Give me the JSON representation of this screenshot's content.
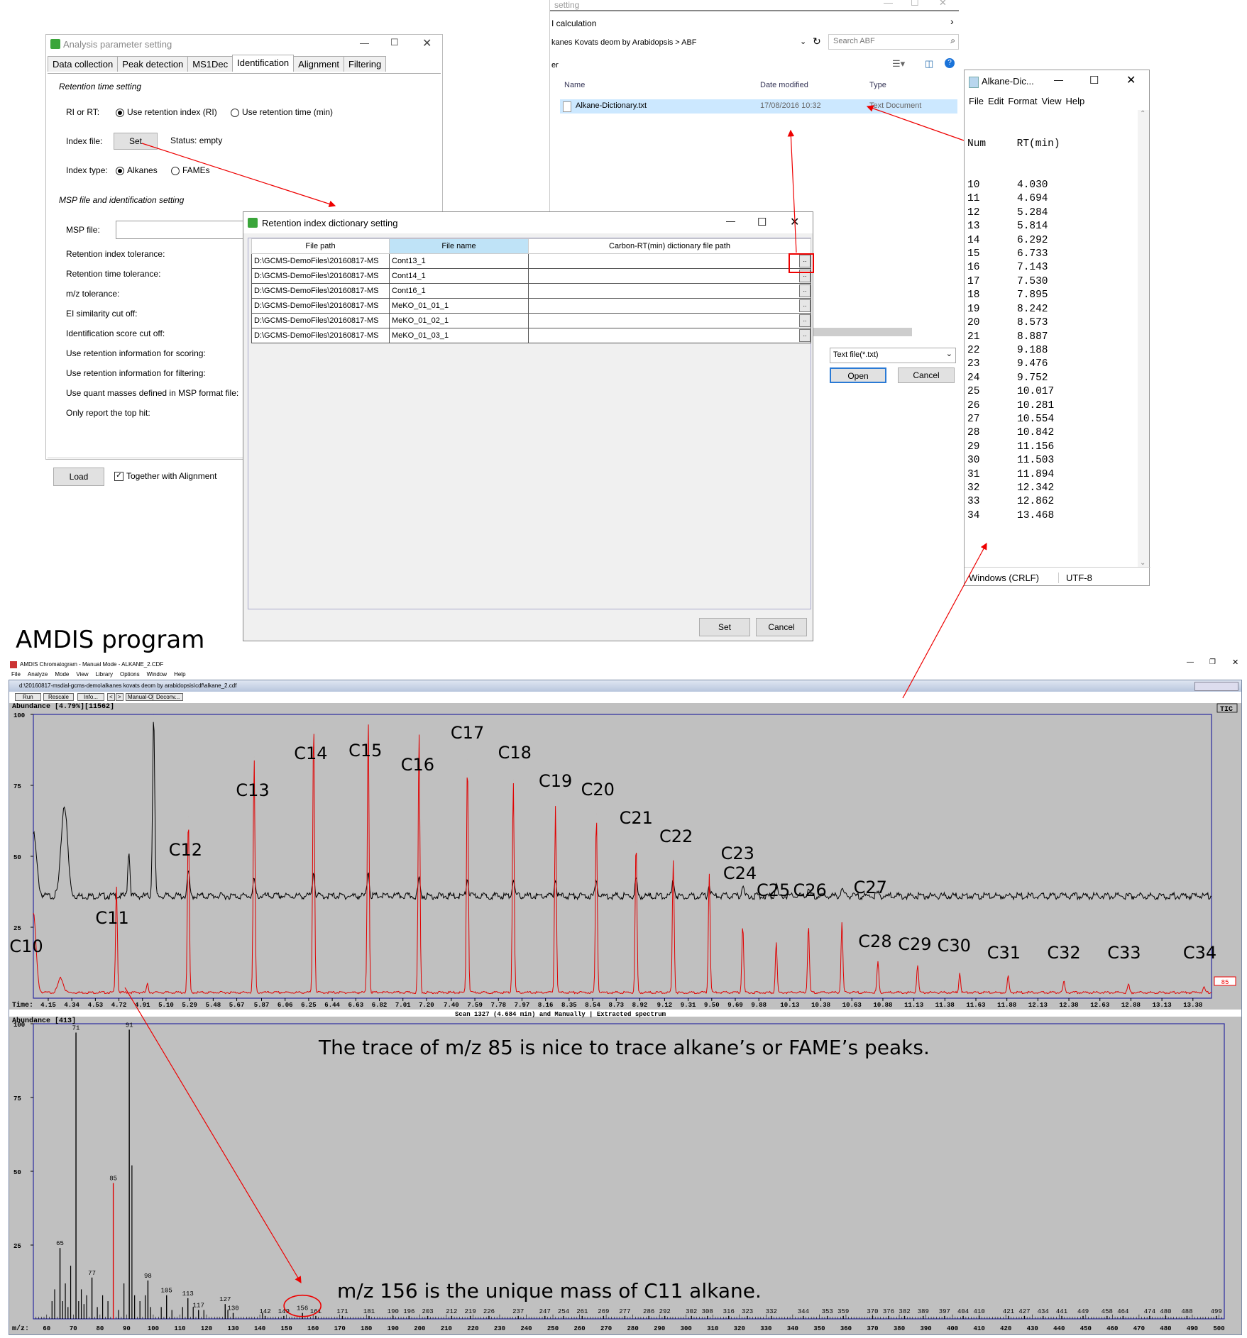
{
  "analysis_window": {
    "title": "Analysis parameter setting",
    "tabs": [
      "Data collection",
      "Peak detection",
      "MS1Dec",
      "Identification",
      "Alignment",
      "Filtering"
    ],
    "active_tab": "Identification",
    "rt_section": "Retention time setting",
    "ri_or_rt_label": "RI or RT:",
    "opt_ri": "Use retention index (RI)",
    "opt_rt": "Use retention time (min)",
    "index_file_label": "Index file:",
    "set_label": "Set",
    "status": "Status: empty",
    "index_type_label": "Index type:",
    "opt_alkanes": "Alkanes",
    "opt_fames": "FAMEs",
    "msp_section": "MSP file and identification setting",
    "params": [
      "MSP file:",
      "Retention index tolerance:",
      "Retention time tolerance:",
      "m/z tolerance:",
      "EI similarity cut off:",
      "Identification score cut off:",
      "Use retention information for scoring:",
      "Use retention information for filtering:",
      "Use quant masses defined in MSP format file:",
      "Only report the top hit:"
    ],
    "load_label": "Load",
    "together_label": "Together with Alignment"
  },
  "file_dialog": {
    "title_frag": "setting",
    "sub_frag": "I calculation",
    "path": "kanes Kovats deom by Arabidopsis  >  ABF",
    "search_placeholder": "Search ABF",
    "left_frag": "er",
    "col_name": "Name",
    "col_date": "Date modified",
    "col_type": "Type",
    "file_name": "Alkane-Dictionary.txt",
    "file_date": "17/08/2016 10:32",
    "file_type": "Text Document",
    "filter": "Text file(*.txt)",
    "open_label": "Open",
    "cancel_label": "Cancel"
  },
  "notepad": {
    "title": "Alkane-Dic...",
    "menu": [
      "File",
      "Edit",
      "Format",
      "View",
      "Help"
    ],
    "header": "Num     RT(min)",
    "rows": [
      {
        "num": "10",
        "rt": "4.030"
      },
      {
        "num": "11",
        "rt": "4.694"
      },
      {
        "num": "12",
        "rt": "5.284"
      },
      {
        "num": "13",
        "rt": "5.814"
      },
      {
        "num": "14",
        "rt": "6.292"
      },
      {
        "num": "15",
        "rt": "6.733"
      },
      {
        "num": "16",
        "rt": "7.143"
      },
      {
        "num": "17",
        "rt": "7.530"
      },
      {
        "num": "18",
        "rt": "7.895"
      },
      {
        "num": "19",
        "rt": "8.242"
      },
      {
        "num": "20",
        "rt": "8.573"
      },
      {
        "num": "21",
        "rt": "8.887"
      },
      {
        "num": "22",
        "rt": "9.188"
      },
      {
        "num": "23",
        "rt": "9.476"
      },
      {
        "num": "24",
        "rt": "9.752"
      },
      {
        "num": "25",
        "rt": "10.017"
      },
      {
        "num": "26",
        "rt": "10.281"
      },
      {
        "num": "27",
        "rt": "10.554"
      },
      {
        "num": "28",
        "rt": "10.842"
      },
      {
        "num": "29",
        "rt": "11.156"
      },
      {
        "num": "30",
        "rt": "11.503"
      },
      {
        "num": "31",
        "rt": "11.894"
      },
      {
        "num": "32",
        "rt": "12.342"
      },
      {
        "num": "33",
        "rt": "12.862"
      },
      {
        "num": "34",
        "rt": "13.468"
      }
    ],
    "status_eol": "Windows (CRLF)",
    "status_enc": "UTF-8"
  },
  "ri_dialog": {
    "title": "Retention index dictionary setting",
    "col_path": "File path",
    "col_name": "File name",
    "col_dict": "Carbon-RT(min) dictionary file path",
    "rows": [
      {
        "path": "D:\\GCMS-DemoFiles\\20160817-MS",
        "name": "Cont13_1"
      },
      {
        "path": "D:\\GCMS-DemoFiles\\20160817-MS",
        "name": "Cont14_1"
      },
      {
        "path": "D:\\GCMS-DemoFiles\\20160817-MS",
        "name": "Cont16_1"
      },
      {
        "path": "D:\\GCMS-DemoFiles\\20160817-MS",
        "name": "MeKO_01_01_1"
      },
      {
        "path": "D:\\GCMS-DemoFiles\\20160817-MS",
        "name": "MeKO_01_02_1"
      },
      {
        "path": "D:\\GCMS-DemoFiles\\20160817-MS",
        "name": "MeKO_01_03_1"
      }
    ],
    "browse": "..",
    "set_label": "Set",
    "cancel_label": "Cancel"
  },
  "amdis": {
    "heading": "AMDIS program",
    "title": "AMDIS Chromatogram - Manual Mode - ALKANE_2.CDF",
    "menu": [
      "File",
      "Analyze",
      "Mode",
      "View",
      "Library",
      "Options",
      "Window",
      "Help"
    ],
    "doc_path": "d:\\20160817-msdial-gcms-demo\\alkanes kovats deom by arabidopsis\\cdf\\alkane_2.cdf",
    "toolbar": [
      "Run",
      "Rescale",
      "Info...",
      "<",
      ">",
      "Manual-On",
      "Deconv..."
    ],
    "abundance_top": "Abundance [4.79%][11562]",
    "tic": "TIC",
    "ion_label": "85",
    "time_label": "Time:",
    "scan_info": "Scan 1327 (4.684 min) and Manually | Extracted spectrum",
    "abundance_bottom": "Abundance [413]",
    "mz_label": "m/z:",
    "note_trace": "The trace of m/z 85 is nice to trace alkane’s or FAME’s peaks.",
    "note_unique": "m/z 156 is the unique mass of C11 alkane.",
    "circled": "156"
  },
  "chart_data": [
    {
      "type": "line",
      "title": "",
      "xlabel": "Time:",
      "ylabel": "Abundance [4.79%][11562]",
      "x_ticks": [
        "4.15",
        "4.34",
        "4.53",
        "4.72",
        "4.91",
        "5.10",
        "5.29",
        "5.48",
        "5.67",
        "5.87",
        "6.06",
        "6.25",
        "6.44",
        "6.63",
        "6.82",
        "7.01",
        "7.20",
        "7.40",
        "7.59",
        "7.78",
        "7.97",
        "8.16",
        "8.35",
        "8.54",
        "8.73",
        "8.92",
        "9.12",
        "9.31",
        "9.50",
        "9.69",
        "9.88",
        "10.13",
        "10.38",
        "10.63",
        "10.88",
        "11.13",
        "11.38",
        "11.63",
        "11.88",
        "12.13",
        "12.38",
        "12.63",
        "12.88",
        "13.13",
        "13.38"
      ],
      "y_ticks": [
        "100",
        "75",
        "50",
        "25"
      ],
      "xlim": [
        4.03,
        13.53
      ],
      "ylim": [
        0,
        100
      ],
      "series": [
        {
          "name": "TIC",
          "color": "#000000",
          "peaks": [
            {
              "x": 4.03,
              "y": 58
            },
            {
              "x": 4.28,
              "y": 68
            },
            {
              "x": 4.8,
              "y": 52
            },
            {
              "x": 5.0,
              "y": 100
            },
            {
              "x": 5.28,
              "y": 45
            },
            {
              "x": 5.81,
              "y": 42
            },
            {
              "x": 6.29,
              "y": 45
            },
            {
              "x": 6.73,
              "y": 45
            },
            {
              "x": 7.14,
              "y": 42
            },
            {
              "x": 7.53,
              "y": 42
            },
            {
              "x": 7.9,
              "y": 42
            },
            {
              "x": 8.24,
              "y": 42
            },
            {
              "x": 8.57,
              "y": 42
            },
            {
              "x": 8.89,
              "y": 42
            },
            {
              "x": 9.19,
              "y": 42
            },
            {
              "x": 9.48,
              "y": 40
            },
            {
              "x": 9.75,
              "y": 40
            },
            {
              "x": 10.02,
              "y": 41
            },
            {
              "x": 10.28,
              "y": 39
            },
            {
              "x": 10.55,
              "y": 39
            },
            {
              "x": 10.84,
              "y": 37
            },
            {
              "x": 11.16,
              "y": 36
            },
            {
              "x": 11.5,
              "y": 36
            },
            {
              "x": 11.89,
              "y": 36
            },
            {
              "x": 12.34,
              "y": 35
            }
          ],
          "baseline": 36
        },
        {
          "name": "85",
          "color": "#e00000",
          "peaks": [
            {
              "x": 4.03,
              "y": 30
            },
            {
              "x": 4.25,
              "y": 7
            },
            {
              "x": 4.7,
              "y": 40
            },
            {
              "x": 4.95,
              "y": 5
            },
            {
              "x": 5.28,
              "y": 64
            },
            {
              "x": 5.81,
              "y": 85
            },
            {
              "x": 6.29,
              "y": 98
            },
            {
              "x": 6.73,
              "y": 99
            },
            {
              "x": 7.14,
              "y": 94
            },
            {
              "x": 7.53,
              "y": 84
            },
            {
              "x": 7.9,
              "y": 77
            },
            {
              "x": 8.24,
              "y": 68
            },
            {
              "x": 8.57,
              "y": 65
            },
            {
              "x": 8.89,
              "y": 55
            },
            {
              "x": 9.19,
              "y": 49
            },
            {
              "x": 9.48,
              "y": 44
            },
            {
              "x": 9.75,
              "y": 26
            },
            {
              "x": 10.02,
              "y": 20
            },
            {
              "x": 10.28,
              "y": 26
            },
            {
              "x": 10.55,
              "y": 27
            },
            {
              "x": 10.84,
              "y": 13
            },
            {
              "x": 11.16,
              "y": 12
            },
            {
              "x": 11.5,
              "y": 9
            },
            {
              "x": 11.89,
              "y": 8
            },
            {
              "x": 12.34,
              "y": 6
            },
            {
              "x": 12.86,
              "y": 5
            },
            {
              "x": 13.47,
              "y": 4
            }
          ],
          "baseline": 2
        }
      ],
      "annotations": [
        "C10",
        "C11",
        "C12",
        "C13",
        "C14",
        "C15",
        "C16",
        "C17",
        "C18",
        "C19",
        "C20",
        "C21",
        "C22",
        "C23",
        "C24",
        "C25",
        "C26",
        "C27",
        "C28",
        "C29",
        "C30",
        "C31",
        "C32",
        "C33",
        "C34"
      ]
    },
    {
      "type": "bar",
      "title": "",
      "xlabel": "m/z:",
      "ylabel": "Abundance [413]",
      "xlim": [
        55,
        502
      ],
      "ylim": [
        0,
        100
      ],
      "y_ticks": [
        "100",
        "75",
        "50",
        "25"
      ],
      "x_ticks": [
        "60",
        "70",
        "80",
        "90",
        "100",
        "110",
        "120",
        "130",
        "140",
        "150",
        "160",
        "170",
        "180",
        "190",
        "200",
        "210",
        "220",
        "230",
        "240",
        "250",
        "260",
        "270",
        "280",
        "290",
        "300",
        "310",
        "320",
        "330",
        "340",
        "350",
        "360",
        "370",
        "380",
        "390",
        "400",
        "410",
        "420",
        "430",
        "440",
        "450",
        "460",
        "470",
        "480",
        "490",
        "500"
      ],
      "labeled_peaks": [
        {
          "mz": 65,
          "value": 24
        },
        {
          "mz": 71,
          "value": 97
        },
        {
          "mz": 77,
          "value": 14
        },
        {
          "mz": 85,
          "value": 46,
          "color": "#e00000"
        },
        {
          "mz": 91,
          "value": 98
        },
        {
          "mz": 98,
          "value": 13
        },
        {
          "mz": 105,
          "value": 8
        },
        {
          "mz": 113,
          "value": 7
        },
        {
          "mz": 117,
          "value": 3
        },
        {
          "mz": 127,
          "value": 5
        },
        {
          "mz": 130,
          "value": 2
        },
        {
          "mz": 142,
          "value": 1
        },
        {
          "mz": 149,
          "value": 1
        },
        {
          "mz": 156,
          "value": 2
        },
        {
          "mz": 161,
          "value": 1
        },
        {
          "mz": 171,
          "value": 1
        },
        {
          "mz": 181,
          "value": 1
        },
        {
          "mz": 190,
          "value": 1
        },
        {
          "mz": 196,
          "value": 1
        },
        {
          "mz": 203,
          "value": 1
        },
        {
          "mz": 212,
          "value": 1
        },
        {
          "mz": 219,
          "value": 1
        },
        {
          "mz": 226,
          "value": 1
        },
        {
          "mz": 237,
          "value": 1
        },
        {
          "mz": 247,
          "value": 1
        },
        {
          "mz": 254,
          "value": 1
        },
        {
          "mz": 261,
          "value": 1
        },
        {
          "mz": 269,
          "value": 1
        },
        {
          "mz": 277,
          "value": 1
        },
        {
          "mz": 286,
          "value": 1
        },
        {
          "mz": 292,
          "value": 1
        },
        {
          "mz": 302,
          "value": 1
        },
        {
          "mz": 308,
          "value": 1
        },
        {
          "mz": 316,
          "value": 1
        },
        {
          "mz": 323,
          "value": 1
        },
        {
          "mz": 332,
          "value": 1
        },
        {
          "mz": 344,
          "value": 1
        },
        {
          "mz": 353,
          "value": 1
        },
        {
          "mz": 359,
          "value": 1
        },
        {
          "mz": 370,
          "value": 1
        },
        {
          "mz": 376,
          "value": 1
        },
        {
          "mz": 382,
          "value": 1
        },
        {
          "mz": 389,
          "value": 1
        },
        {
          "mz": 397,
          "value": 1
        },
        {
          "mz": 404,
          "value": 1
        },
        {
          "mz": 410,
          "value": 1
        },
        {
          "mz": 421,
          "value": 1
        },
        {
          "mz": 427,
          "value": 1
        },
        {
          "mz": 434,
          "value": 1
        },
        {
          "mz": 441,
          "value": 1
        },
        {
          "mz": 449,
          "value": 1
        },
        {
          "mz": 458,
          "value": 1
        },
        {
          "mz": 464,
          "value": 1
        },
        {
          "mz": 474,
          "value": 1
        },
        {
          "mz": 480,
          "value": 1
        },
        {
          "mz": 488,
          "value": 1
        },
        {
          "mz": 499,
          "value": 1
        }
      ],
      "minor_peaks": [
        {
          "mz": 62,
          "value": 6
        },
        {
          "mz": 63,
          "value": 10
        },
        {
          "mz": 66,
          "value": 6
        },
        {
          "mz": 67,
          "value": 12
        },
        {
          "mz": 68,
          "value": 4
        },
        {
          "mz": 69,
          "value": 18
        },
        {
          "mz": 72,
          "value": 6
        },
        {
          "mz": 73,
          "value": 10
        },
        {
          "mz": 74,
          "value": 5
        },
        {
          "mz": 75,
          "value": 8
        },
        {
          "mz": 79,
          "value": 4
        },
        {
          "mz": 81,
          "value": 8
        },
        {
          "mz": 83,
          "value": 6
        },
        {
          "mz": 87,
          "value": 3
        },
        {
          "mz": 89,
          "value": 12
        },
        {
          "mz": 92,
          "value": 52
        },
        {
          "mz": 93,
          "value": 8
        },
        {
          "mz": 95,
          "value": 6
        },
        {
          "mz": 97,
          "value": 8
        },
        {
          "mz": 99,
          "value": 4
        },
        {
          "mz": 103,
          "value": 4
        },
        {
          "mz": 107,
          "value": 3
        },
        {
          "mz": 111,
          "value": 4
        },
        {
          "mz": 115,
          "value": 4
        },
        {
          "mz": 119,
          "value": 3
        },
        {
          "mz": 128,
          "value": 3
        },
        {
          "mz": 141,
          "value": 2
        }
      ]
    }
  ]
}
